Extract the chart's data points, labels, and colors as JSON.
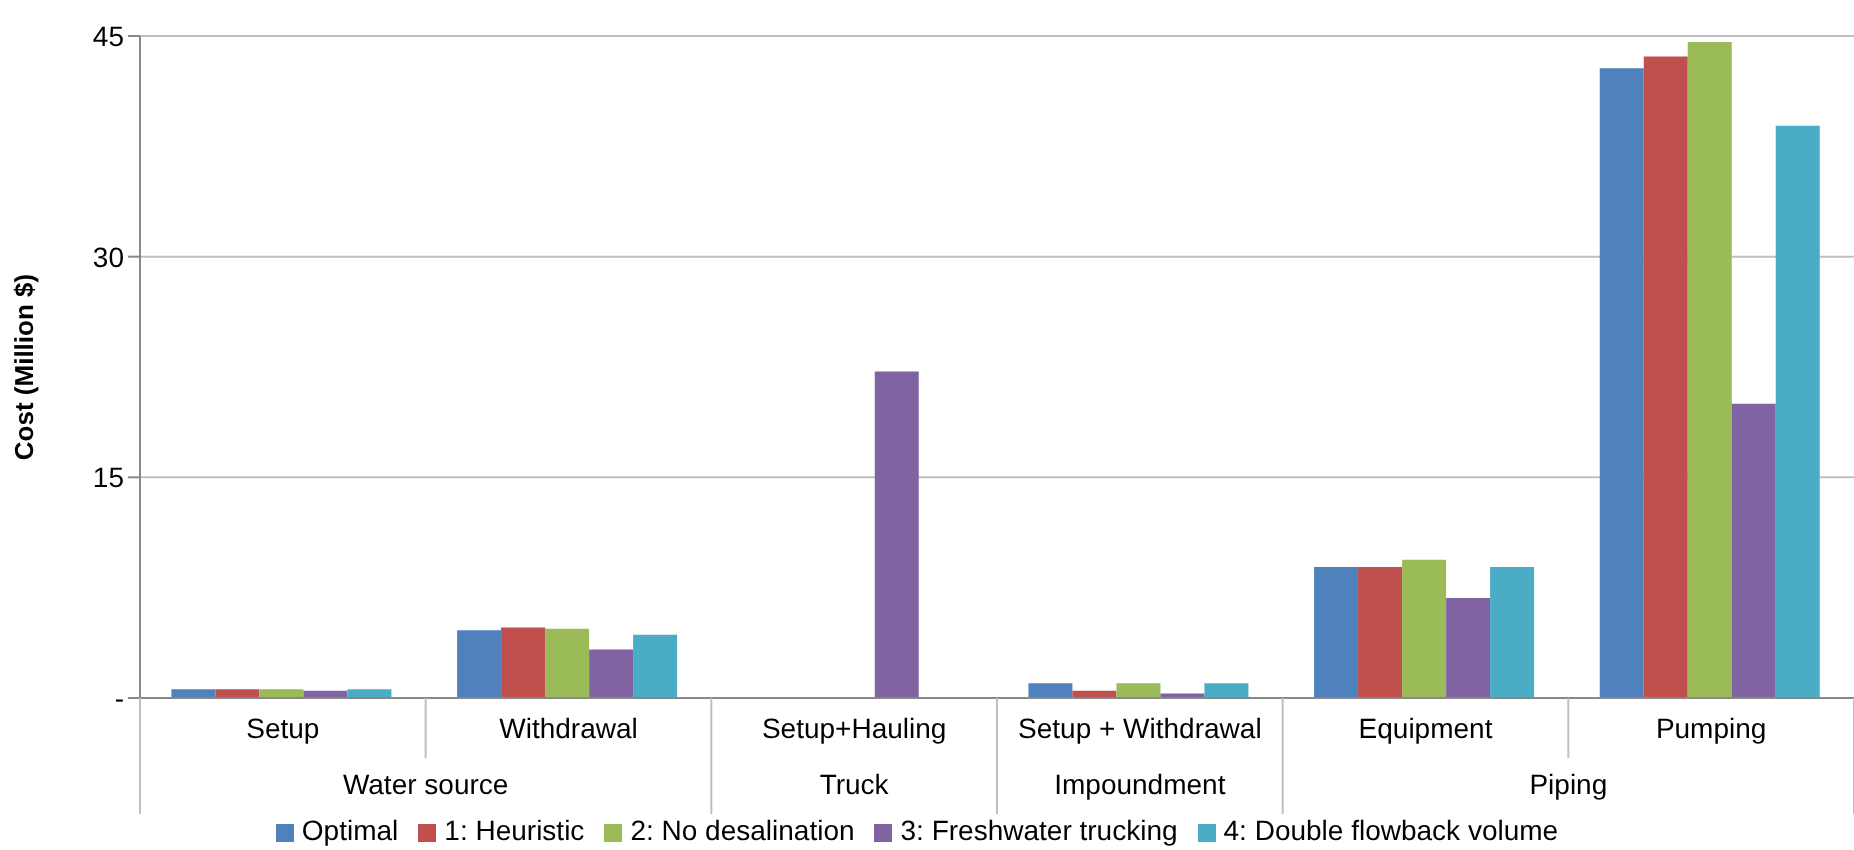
{
  "chart_data": {
    "type": "bar",
    "ylabel": "Cost (Million $)",
    "categories": [
      "Setup",
      "Withdrawal",
      "Setup+Hauling",
      "Setup + Withdrawal",
      "Equipment",
      "Pumping"
    ],
    "annotations": [
      "Water source",
      "Truck",
      "Impoundment",
      "Piping"
    ],
    "series": [
      {
        "name": "Optimal",
        "color": "#4f81bd",
        "values": [
          0.6,
          4.6,
          0,
          1.0,
          8.9,
          42.8
        ]
      },
      {
        "name": "1: Heuristic",
        "color": "#c0504d",
        "values": [
          0.6,
          4.8,
          0,
          0.5,
          8.9,
          43.6
        ]
      },
      {
        "name": "2: No desalination",
        "color": "#9bbb59",
        "values": [
          0.6,
          4.7,
          0,
          1.0,
          9.4,
          44.6
        ]
      },
      {
        "name": "3: Freshwater trucking",
        "color": "#8064a2",
        "values": [
          0.5,
          3.3,
          22.2,
          0.3,
          6.8,
          20.0
        ]
      },
      {
        "name": "4: Double flowback volume",
        "color": "#4bacc6",
        "values": [
          0.6,
          4.3,
          0,
          1.0,
          8.9,
          38.9
        ]
      }
    ],
    "ylim": [
      0,
      45
    ],
    "yticks": [
      {
        "value": 0,
        "label": "-"
      },
      15,
      30,
      45
    ],
    "grid": "y",
    "legend": "bottom"
  }
}
